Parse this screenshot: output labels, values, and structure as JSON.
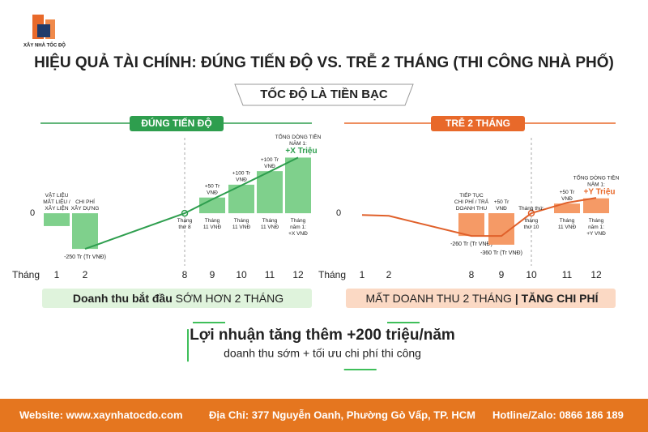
{
  "logo": "XÂY NHÀ TỐC ĐỘ",
  "title": "HIỆU QUẢ TÀI CHÍNH: ĐÚNG TIẾN ĐỘ VS. TRỄ 2 THÁNG (THI CÔNG NHÀ PHỐ)",
  "subtitle": "TỐC ĐỘ LÀ TIỀN BẠC",
  "chart_data": [
    {
      "type": "bar",
      "title": "ĐÚNG TIẾN ĐỘ",
      "x_label": "Tháng",
      "color": "#2e9e4e",
      "categories": [
        "1",
        "2",
        "8",
        "9",
        "10",
        "11",
        "12"
      ],
      "ylim": [
        -380,
        540
      ],
      "yticks": [
        0
      ],
      "series": [
        {
          "type": "bar",
          "color": "#7fd08c",
          "values": [
            -90,
            -250,
            null,
            110,
            200,
            295,
            390
          ],
          "value_labels": [
            null,
            "-250 Tr (Tr VNĐ)",
            null,
            null,
            null,
            null,
            null
          ]
        },
        {
          "type": "line",
          "color": "#2e9e4e",
          "values": [
            null,
            -250,
            0,
            97,
            195,
            292,
            390
          ]
        }
      ],
      "annotations": [
        [
          "VẬT LIỆU",
          "MẮT LIỆU /",
          "XÂY LIỆN"
        ],
        [
          "CHI PHÍ",
          "XÂY DỰNG"
        ],
        null,
        [
          "+50 Tr",
          "VNĐ"
        ],
        [
          "+100 Tr",
          "VNĐ"
        ],
        [
          "+100 Tr",
          "VNĐ"
        ],
        [
          "TỔNG DÒNG TIỀN",
          "NĂM 1:"
        ]
      ],
      "highlight": "+X Triệu",
      "inner_labels": [
        null,
        null,
        [
          "Tháng",
          "thứ 8"
        ],
        [
          "Tháng",
          "11 VNĐ"
        ],
        [
          "Tháng",
          "11 VNĐ"
        ],
        [
          "Tháng",
          "11 VNĐ"
        ],
        [
          "Tháng",
          "năm 1:",
          "+X VNĐ"
        ]
      ],
      "banner": [
        "Doanh thu bắt đầu ",
        "SỚM HƠN 2 THÁNG"
      ],
      "banner_color": "#dff3dc"
    },
    {
      "type": "bar",
      "title": "TRỄ 2 THÁNG",
      "x_label": "Tháng",
      "color": "#e8692a",
      "categories": [
        "1",
        "2",
        "8",
        "9",
        "10",
        "11",
        "12"
      ],
      "ylim": [
        -620,
        880
      ],
      "yticks": [
        0
      ],
      "series": [
        {
          "type": "bar",
          "color": "#f59a66",
          "values": [
            null,
            null,
            -260,
            -360,
            null,
            110,
            170
          ],
          "value_labels": [
            null,
            null,
            "-260 Tr (Tr VNĐ)",
            "-360 Tr (Tr VNĐ)",
            null,
            null,
            null
          ]
        },
        {
          "type": "line",
          "color": "#e0602a",
          "values": [
            -20,
            -30,
            -260,
            -260,
            0,
            120,
            175
          ]
        }
      ],
      "annotations": [
        null,
        null,
        [
          "TIẾP TỤC",
          "CHI PHÍ / TRẢ",
          "DOANH THU"
        ],
        [
          "+50 Tr",
          "VNĐ"
        ],
        [
          "Tháng thứ:"
        ],
        [
          "+50 Tr",
          "VNĐ"
        ],
        [
          "TỔNG DÒNG TIỀN",
          "NĂM 1:"
        ]
      ],
      "highlight": "+Y Triệu",
      "inner_labels": [
        null,
        null,
        null,
        null,
        [
          "tháng",
          "thứ 10"
        ],
        [
          "Tháng",
          "11 VNĐ"
        ],
        [
          "Tháng",
          "năm 1:",
          "+Y VNĐ"
        ]
      ],
      "banner": [
        "MẤT DOANH THU 2 THÁNG",
        " | TĂNG CHI PHÍ"
      ],
      "banner_color": "#fbd9c4"
    }
  ],
  "result": {
    "headline": "Lợi nhuận tăng thêm +200 triệu/năm",
    "detail": "doanh thu sớm + tối ưu chi phí thi công"
  },
  "footer": {
    "website": "Website: www.xaynhatocdo.com",
    "address": "Địa Chỉ: 377 Nguyễn Oanh, Phường Gò Vấp, TP. HCM",
    "hotline": "Hotline/Zalo: 0866 186 189"
  }
}
